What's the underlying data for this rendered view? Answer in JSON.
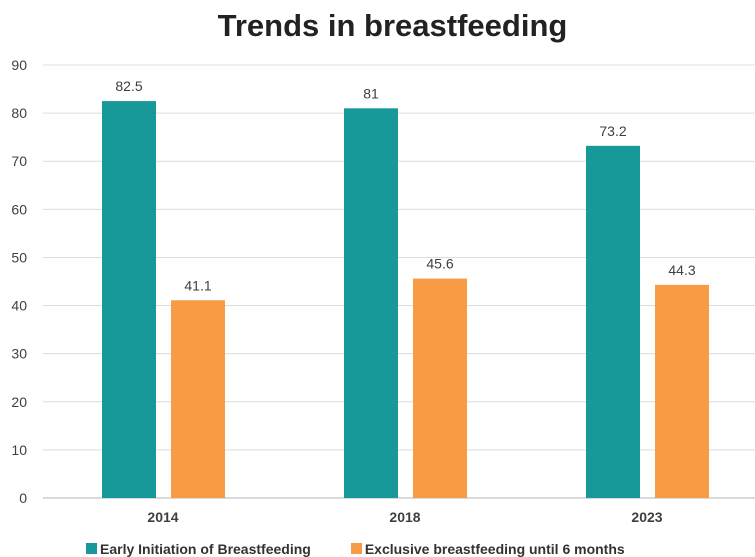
{
  "chart_data": {
    "type": "bar",
    "title": "Trends in breastfeeding",
    "xlabel": "",
    "ylabel": "",
    "categories": [
      "2014",
      "2018",
      "2023"
    ],
    "series": [
      {
        "name": "Early Initiation of Breastfeeding",
        "values": [
          82.5,
          81,
          73.2
        ],
        "labels": [
          "82.5",
          "81",
          "73.2"
        ],
        "color": "#17999a"
      },
      {
        "name": "Exclusive breastfeeding until 6 months",
        "values": [
          41.1,
          45.6,
          44.3
        ],
        "labels": [
          "41.1",
          "45.6",
          "44.3"
        ],
        "color": "#f79b45"
      }
    ],
    "ylim": [
      0,
      90
    ],
    "yticks": [
      "0",
      "10",
      "20",
      "30",
      "40",
      "50",
      "60",
      "70",
      "80",
      "90"
    ],
    "grid": true,
    "legend_position": "bottom"
  }
}
